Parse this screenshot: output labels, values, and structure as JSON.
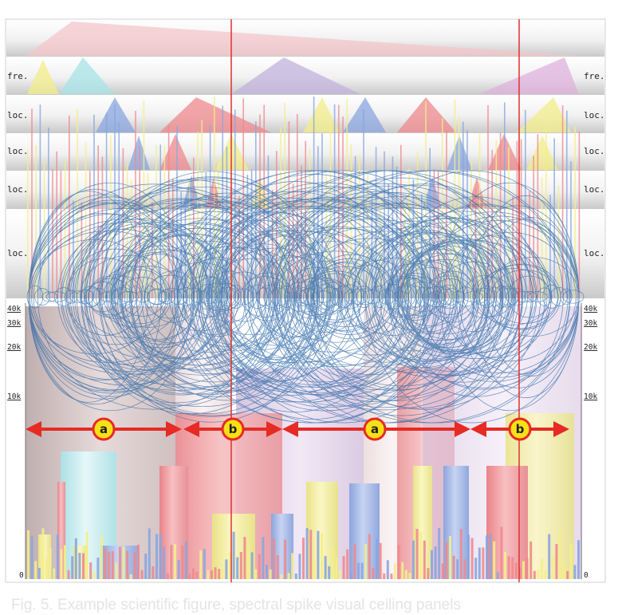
{
  "figure": {
    "band_labels": [
      "fre.",
      "loc.",
      "loc.",
      "loc.",
      "loc."
    ],
    "y_axis_ticks": [
      "40k",
      "30k",
      "20k",
      "10k",
      "0"
    ],
    "segment_labels": [
      "a",
      "b",
      "a",
      "b"
    ],
    "colors": {
      "arc": "#2f6aa8",
      "red": "#ef8a8e",
      "yellow": "#f3ee8a",
      "blue": "#8aa6df",
      "cyan": "#a8e4e8",
      "marker_line": "#e0302e",
      "arrow": "#e62a24",
      "badge_fill": "#f7e016"
    }
  },
  "caption": "Fig. 5.  Example scientific figure, spectral spike visual ceiling panels"
}
